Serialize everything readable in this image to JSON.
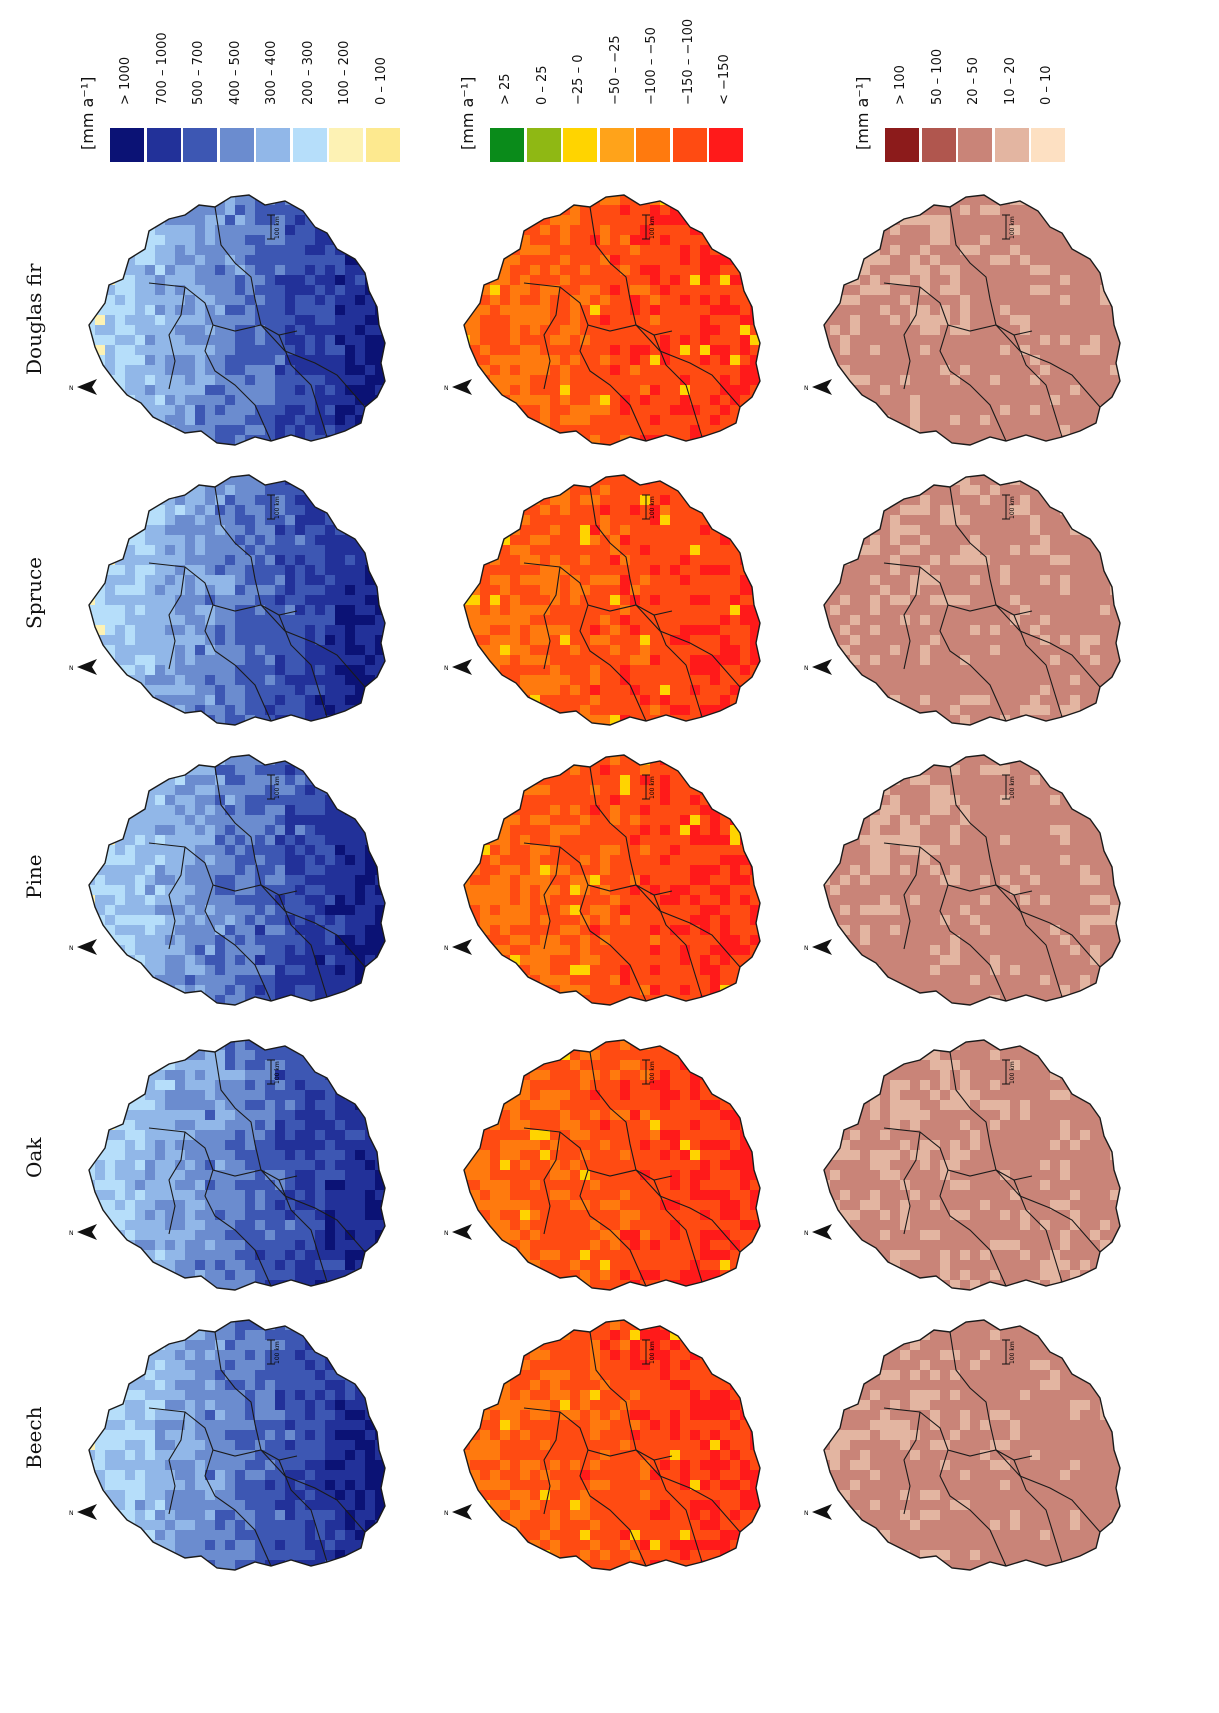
{
  "legends": [
    {
      "id": "blue",
      "unit": "[mm a⁻¹]",
      "classes": [
        {
          "label": "> 1000",
          "color": "#0b1275"
        },
        {
          "label": "700 – 1000",
          "color": "#223199"
        },
        {
          "label": "500 – 700",
          "color": "#3d57b3"
        },
        {
          "label": "400 – 500",
          "color": "#6b8ccf"
        },
        {
          "label": "300 – 400",
          "color": "#91b7e8"
        },
        {
          "label": "200 – 300",
          "color": "#b6defa"
        },
        {
          "label": "100 – 200",
          "color": "#fdf2b4"
        },
        {
          "label": "0 – 100",
          "color": "#fde98f"
        }
      ]
    },
    {
      "id": "orange",
      "unit": "[mm a⁻¹]",
      "classes": [
        {
          "label": "> 25",
          "color": "#0a8b1a"
        },
        {
          "label": "0 – 25",
          "color": "#8fb814"
        },
        {
          "label": "−25 – 0",
          "color": "#ffd400"
        },
        {
          "label": "−50 – −25",
          "color": "#ffa31a"
        },
        {
          "label": "−100 – −50",
          "color": "#ff7a0e"
        },
        {
          "label": "−150 – −100",
          "color": "#ff4b12"
        },
        {
          "label": "< −150",
          "color": "#ff1a1a"
        }
      ]
    },
    {
      "id": "brown",
      "unit": "[mm a⁻¹]",
      "classes": [
        {
          "label": "> 100",
          "color": "#8c1b1b"
        },
        {
          "label": "50 – 100",
          "color": "#b0564e"
        },
        {
          "label": "20 – 50",
          "color": "#c98478"
        },
        {
          "label": "10 – 20",
          "color": "#e3b5a1"
        },
        {
          "label": "0 – 10",
          "color": "#fde0c2"
        }
      ]
    }
  ],
  "species": [
    {
      "name": "Douglas fir"
    },
    {
      "name": "Spruce"
    },
    {
      "name": "Pine"
    },
    {
      "name": "Oak"
    },
    {
      "name": "Beech"
    }
  ],
  "map": {
    "north_label": "N",
    "scale_label": "100 km",
    "outline_color": "#1a1a1a"
  }
}
